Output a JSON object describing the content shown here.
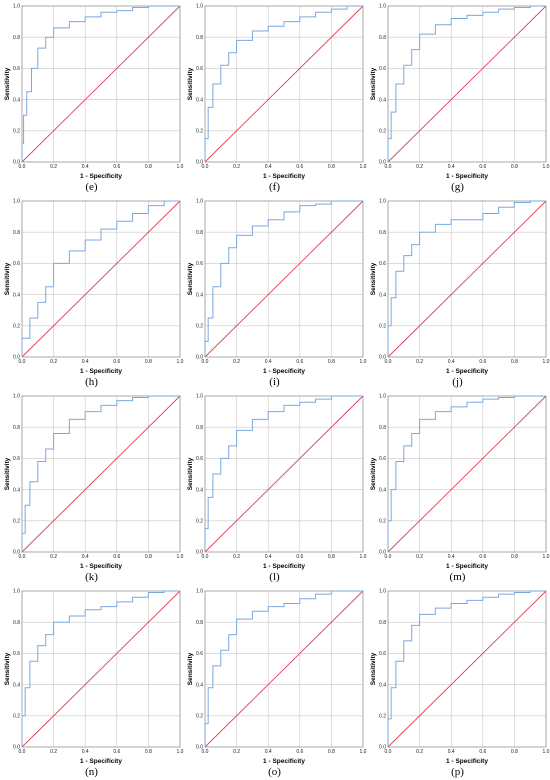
{
  "colors": {
    "roc": "#7aa9df",
    "reference": "#e0405a",
    "grid": "#c8c8c8",
    "frame": "#999999"
  },
  "chart_data": [
    {
      "type": "line",
      "caption": "(e)",
      "xlabel": "1 - Specificity",
      "ylabel": "Sensitivity",
      "xlim": [
        0,
        1
      ],
      "ylim": [
        0,
        1
      ],
      "grid": true,
      "xticks": [
        "0.0",
        "0.2",
        "0.4",
        "0.6",
        "0.8",
        "1.0"
      ],
      "yticks": [
        "0.0",
        "0.2",
        "0.4",
        "0.6",
        "0.8",
        "1.0"
      ],
      "series": [
        {
          "x": [
            0,
            0.01,
            0.03,
            0.06,
            0.1,
            0.15,
            0.2,
            0.3,
            0.4,
            0.5,
            0.6,
            0.7,
            0.8,
            0.9,
            1.0
          ],
          "y": [
            0,
            0.12,
            0.3,
            0.45,
            0.6,
            0.73,
            0.8,
            0.86,
            0.9,
            0.93,
            0.96,
            0.97,
            0.99,
            1.0,
            1.0
          ]
        },
        {
          "x": [
            0,
            1
          ],
          "y": [
            0,
            1
          ]
        }
      ]
    },
    {
      "type": "line",
      "caption": "(f)",
      "xlabel": "1 - Specificity",
      "ylabel": "Sensitivity",
      "xlim": [
        0,
        1
      ],
      "ylim": [
        0,
        1
      ],
      "grid": true,
      "xticks": [
        "0.0",
        "0.2",
        "0.4",
        "0.6",
        "0.8",
        "1.0"
      ],
      "yticks": [
        "0.0",
        "0.2",
        "0.4",
        "0.6",
        "0.8",
        "1.0"
      ],
      "series": [
        {
          "x": [
            0,
            0.02,
            0.05,
            0.1,
            0.15,
            0.2,
            0.3,
            0.4,
            0.5,
            0.6,
            0.7,
            0.8,
            0.9,
            1.0
          ],
          "y": [
            0,
            0.15,
            0.35,
            0.5,
            0.62,
            0.7,
            0.78,
            0.84,
            0.87,
            0.9,
            0.93,
            0.96,
            0.98,
            1.0
          ]
        },
        {
          "x": [
            0,
            1
          ],
          "y": [
            0,
            1
          ]
        }
      ]
    },
    {
      "type": "line",
      "caption": "(g)",
      "xlabel": "1 - Specificity",
      "ylabel": "Sensitivity",
      "xlim": [
        0,
        1
      ],
      "ylim": [
        0,
        1
      ],
      "grid": true,
      "xticks": [
        "0.0",
        "0.2",
        "0.4",
        "0.6",
        "0.8",
        "1.0"
      ],
      "yticks": [
        "0.0",
        "0.2",
        "0.4",
        "0.6",
        "0.8",
        "1.0"
      ],
      "series": [
        {
          "x": [
            0,
            0.02,
            0.05,
            0.1,
            0.15,
            0.2,
            0.3,
            0.4,
            0.5,
            0.6,
            0.7,
            0.8,
            0.9,
            1.0
          ],
          "y": [
            0,
            0.15,
            0.32,
            0.5,
            0.62,
            0.72,
            0.82,
            0.88,
            0.92,
            0.94,
            0.96,
            0.98,
            0.99,
            1.0
          ]
        },
        {
          "x": [
            0,
            1
          ],
          "y": [
            0,
            1
          ]
        }
      ]
    },
    {
      "type": "line",
      "caption": "(h)",
      "xlabel": "1 - Specificity",
      "ylabel": "Sensitivity",
      "xlim": [
        0,
        1
      ],
      "ylim": [
        0,
        1
      ],
      "grid": true,
      "xticks": [
        "0.0",
        "0.2",
        "0.4",
        "0.6",
        "0.8",
        "1.0"
      ],
      "yticks": [
        "0.0",
        "0.2",
        "0.4",
        "0.6",
        "0.8",
        "1.0"
      ],
      "series": [
        {
          "x": [
            0,
            0.05,
            0.1,
            0.15,
            0.2,
            0.3,
            0.4,
            0.5,
            0.6,
            0.7,
            0.8,
            0.9,
            1.0
          ],
          "y": [
            0,
            0.12,
            0.25,
            0.35,
            0.45,
            0.6,
            0.68,
            0.75,
            0.82,
            0.87,
            0.92,
            0.97,
            1.0
          ]
        },
        {
          "x": [
            0,
            1
          ],
          "y": [
            0,
            1
          ]
        }
      ]
    },
    {
      "type": "line",
      "caption": "(i)",
      "xlabel": "1 - Specificity",
      "ylabel": "Sensitivity",
      "xlim": [
        0,
        1
      ],
      "ylim": [
        0,
        1
      ],
      "grid": true,
      "xticks": [
        "0.0",
        "0.2",
        "0.4",
        "0.6",
        "0.8",
        "1.0"
      ],
      "yticks": [
        "0.0",
        "0.2",
        "0.4",
        "0.6",
        "0.8",
        "1.0"
      ],
      "series": [
        {
          "x": [
            0,
            0.02,
            0.05,
            0.1,
            0.15,
            0.2,
            0.3,
            0.4,
            0.5,
            0.6,
            0.7,
            0.8,
            0.9,
            1.0
          ],
          "y": [
            0,
            0.1,
            0.25,
            0.45,
            0.6,
            0.7,
            0.78,
            0.84,
            0.88,
            0.93,
            0.97,
            0.98,
            1.0,
            1.0
          ]
        },
        {
          "x": [
            0,
            1
          ],
          "y": [
            0,
            1
          ]
        }
      ]
    },
    {
      "type": "line",
      "caption": "(j)",
      "xlabel": "1 - Specificity",
      "ylabel": "Sensitivity",
      "xlim": [
        0,
        1
      ],
      "ylim": [
        0,
        1
      ],
      "grid": true,
      "xticks": [
        "0.0",
        "0.2",
        "0.4",
        "0.6",
        "0.8",
        "1.0"
      ],
      "yticks": [
        "0.0",
        "0.2",
        "0.4",
        "0.6",
        "0.8",
        "1.0"
      ],
      "series": [
        {
          "x": [
            0,
            0.02,
            0.05,
            0.1,
            0.15,
            0.2,
            0.3,
            0.4,
            0.5,
            0.6,
            0.7,
            0.8,
            0.9,
            1.0
          ],
          "y": [
            0,
            0.2,
            0.38,
            0.55,
            0.65,
            0.72,
            0.8,
            0.85,
            0.88,
            0.88,
            0.92,
            0.96,
            0.99,
            1.0
          ]
        },
        {
          "x": [
            0,
            1
          ],
          "y": [
            0,
            1
          ]
        }
      ]
    },
    {
      "type": "line",
      "caption": "(k)",
      "xlabel": "1 - Specificity",
      "ylabel": "Sensitivity",
      "xlim": [
        0,
        1
      ],
      "ylim": [
        0,
        1
      ],
      "grid": true,
      "xticks": [
        "0.0",
        "0.2",
        "0.4",
        "0.6",
        "0.8",
        "1.0"
      ],
      "yticks": [
        "0.0",
        "0.2",
        "0.4",
        "0.6",
        "0.8",
        "1.0"
      ],
      "series": [
        {
          "x": [
            0,
            0.02,
            0.05,
            0.1,
            0.15,
            0.2,
            0.3,
            0.4,
            0.5,
            0.6,
            0.7,
            0.8,
            0.9,
            1.0
          ],
          "y": [
            0,
            0.12,
            0.3,
            0.45,
            0.58,
            0.66,
            0.76,
            0.85,
            0.9,
            0.94,
            0.97,
            0.99,
            1.0,
            1.0
          ]
        },
        {
          "x": [
            0,
            1
          ],
          "y": [
            0,
            1
          ]
        }
      ]
    },
    {
      "type": "line",
      "caption": "(l)",
      "xlabel": "1 - Specificity",
      "ylabel": "Sensitivity",
      "xlim": [
        0,
        1
      ],
      "ylim": [
        0,
        1
      ],
      "grid": true,
      "xticks": [
        "0.0",
        "0.2",
        "0.4",
        "0.6",
        "0.8",
        "1.0"
      ],
      "yticks": [
        "0.0",
        "0.2",
        "0.4",
        "0.6",
        "0.8",
        "1.0"
      ],
      "series": [
        {
          "x": [
            0,
            0.02,
            0.05,
            0.1,
            0.15,
            0.2,
            0.3,
            0.4,
            0.5,
            0.6,
            0.7,
            0.8,
            0.9,
            1.0
          ],
          "y": [
            0,
            0.15,
            0.35,
            0.5,
            0.6,
            0.68,
            0.78,
            0.85,
            0.9,
            0.94,
            0.96,
            0.98,
            1.0,
            1.0
          ]
        },
        {
          "x": [
            0,
            1
          ],
          "y": [
            0,
            1
          ]
        }
      ]
    },
    {
      "type": "line",
      "caption": "(m)",
      "xlabel": "1 - Specificity",
      "ylabel": "Sensitivity",
      "xlim": [
        0,
        1
      ],
      "ylim": [
        0,
        1
      ],
      "grid": true,
      "xticks": [
        "0.0",
        "0.2",
        "0.4",
        "0.6",
        "0.8",
        "1.0"
      ],
      "yticks": [
        "0.0",
        "0.2",
        "0.4",
        "0.6",
        "0.8",
        "1.0"
      ],
      "series": [
        {
          "x": [
            0,
            0.02,
            0.05,
            0.1,
            0.15,
            0.2,
            0.3,
            0.4,
            0.5,
            0.6,
            0.7,
            0.8,
            0.9,
            1.0
          ],
          "y": [
            0,
            0.2,
            0.4,
            0.58,
            0.68,
            0.76,
            0.85,
            0.9,
            0.93,
            0.96,
            0.98,
            0.99,
            1.0,
            1.0
          ]
        },
        {
          "x": [
            0,
            1
          ],
          "y": [
            0,
            1
          ]
        }
      ]
    },
    {
      "type": "line",
      "caption": "(n)",
      "xlabel": "1 - Specificity",
      "ylabel": "Sensitivity",
      "xlim": [
        0,
        1
      ],
      "ylim": [
        0,
        1
      ],
      "grid": true,
      "xticks": [
        "0.0",
        "0.2",
        "0.4",
        "0.6",
        "0.8",
        "1.0"
      ],
      "yticks": [
        "0.0",
        "0.2",
        "0.4",
        "0.6",
        "0.8",
        "1.0"
      ],
      "series": [
        {
          "x": [
            0,
            0.02,
            0.05,
            0.1,
            0.15,
            0.2,
            0.3,
            0.4,
            0.5,
            0.6,
            0.7,
            0.8,
            0.9,
            1.0
          ],
          "y": [
            0,
            0.2,
            0.38,
            0.55,
            0.65,
            0.72,
            0.8,
            0.84,
            0.88,
            0.9,
            0.93,
            0.96,
            0.99,
            1.0
          ]
        },
        {
          "x": [
            0,
            1
          ],
          "y": [
            0,
            1
          ]
        }
      ]
    },
    {
      "type": "line",
      "caption": "(o)",
      "xlabel": "1 - Specificity",
      "ylabel": "Sensitivity",
      "xlim": [
        0,
        1
      ],
      "ylim": [
        0,
        1
      ],
      "grid": true,
      "xticks": [
        "0.0",
        "0.2",
        "0.4",
        "0.6",
        "0.8",
        "1.0"
      ],
      "yticks": [
        "0.0",
        "0.2",
        "0.4",
        "0.6",
        "0.8",
        "1.0"
      ],
      "series": [
        {
          "x": [
            0,
            0.02,
            0.05,
            0.1,
            0.15,
            0.2,
            0.3,
            0.4,
            0.5,
            0.6,
            0.7,
            0.8,
            0.9,
            1.0
          ],
          "y": [
            0,
            0.15,
            0.38,
            0.52,
            0.62,
            0.72,
            0.82,
            0.87,
            0.9,
            0.92,
            0.95,
            0.98,
            1.0,
            1.0
          ]
        },
        {
          "x": [
            0,
            1
          ],
          "y": [
            0,
            1
          ]
        }
      ]
    },
    {
      "type": "line",
      "caption": "(p)",
      "xlabel": "1 - Specificity",
      "ylabel": "Sensitivity",
      "xlim": [
        0,
        1
      ],
      "ylim": [
        0,
        1
      ],
      "grid": true,
      "xticks": [
        "0.0",
        "0.2",
        "0.4",
        "0.6",
        "0.8",
        "1.0"
      ],
      "yticks": [
        "0.0",
        "0.2",
        "0.4",
        "0.6",
        "0.8",
        "1.0"
      ],
      "series": [
        {
          "x": [
            0,
            0.02,
            0.05,
            0.1,
            0.15,
            0.2,
            0.3,
            0.4,
            0.5,
            0.6,
            0.7,
            0.8,
            0.9,
            1.0
          ],
          "y": [
            0,
            0.18,
            0.38,
            0.55,
            0.68,
            0.78,
            0.85,
            0.89,
            0.92,
            0.94,
            0.96,
            0.98,
            0.99,
            1.0
          ]
        },
        {
          "x": [
            0,
            1
          ],
          "y": [
            0,
            1
          ]
        }
      ]
    }
  ]
}
